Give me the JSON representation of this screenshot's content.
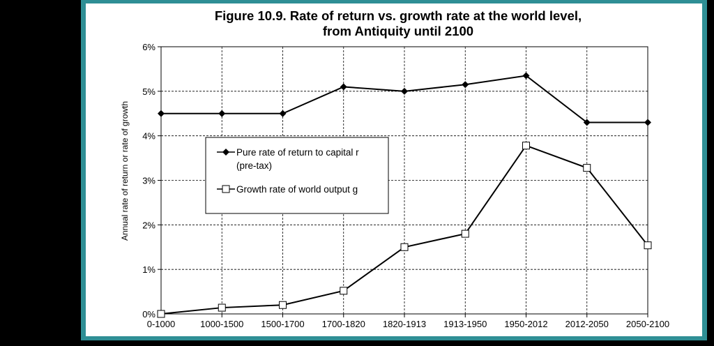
{
  "colors": {
    "frame": "#2f8f95",
    "background": "#000000",
    "panel": "#ffffff",
    "series": "#000000"
  },
  "chart_data": {
    "type": "line",
    "title_line1": "Figure 10.9. Rate of return vs. growth rate at the world level,",
    "title_line2": "from Antiquity until 2100",
    "xlabel": "",
    "ylabel": "Annual rate of return or rate of growth",
    "ylim": [
      0,
      6
    ],
    "yticks": [
      "0%",
      "1%",
      "2%",
      "3%",
      "4%",
      "5%",
      "6%"
    ],
    "categories": [
      "0-1000",
      "1000-1500",
      "1500-1700",
      "1700-1820",
      "1820-1913",
      "1913-1950",
      "1950-2012",
      "2012-2050",
      "2050-2100"
    ],
    "grid": true,
    "legend_position": "left-middle",
    "series": [
      {
        "name": "Pure rate of return to capital r",
        "name_line2": "(pre-tax)",
        "marker": "filled-diamond",
        "values": [
          4.5,
          4.5,
          4.5,
          5.1,
          5.0,
          5.15,
          5.35,
          4.3,
          4.3
        ]
      },
      {
        "name": "Growth rate of world output g",
        "marker": "open-square",
        "values": [
          0.0,
          0.14,
          0.2,
          0.52,
          1.5,
          1.8,
          3.78,
          3.28,
          1.54
        ]
      }
    ]
  }
}
